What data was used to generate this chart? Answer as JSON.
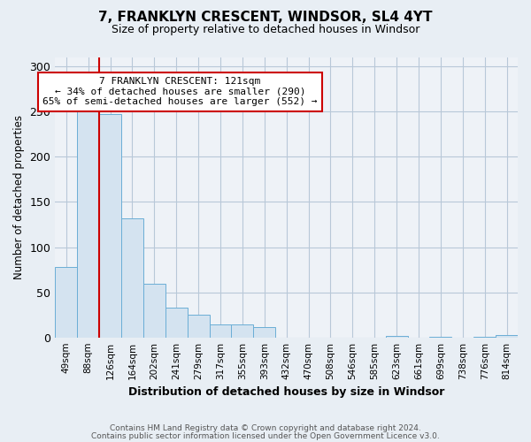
{
  "title": "7, FRANKLYN CRESCENT, WINDSOR, SL4 4YT",
  "subtitle": "Size of property relative to detached houses in Windsor",
  "xlabel": "Distribution of detached houses by size in Windsor",
  "ylabel": "Number of detached properties",
  "footnote1": "Contains HM Land Registry data © Crown copyright and database right 2024.",
  "footnote2": "Contains public sector information licensed under the Open Government Licence v3.0.",
  "categories": [
    "49sqm",
    "88sqm",
    "126sqm",
    "164sqm",
    "202sqm",
    "241sqm",
    "279sqm",
    "317sqm",
    "355sqm",
    "393sqm",
    "432sqm",
    "470sqm",
    "508sqm",
    "546sqm",
    "585sqm",
    "623sqm",
    "661sqm",
    "699sqm",
    "738sqm",
    "776sqm",
    "814sqm"
  ],
  "values": [
    78,
    250,
    247,
    132,
    59,
    33,
    25,
    14,
    14,
    11,
    0,
    0,
    0,
    0,
    0,
    2,
    0,
    1,
    0,
    1,
    3
  ],
  "bar_color": "#d4e3f0",
  "bar_edge_color": "#6baed6",
  "vline_color": "#cc0000",
  "vline_pos": 1.5,
  "annotation_text": "7 FRANKLYN CRESCENT: 121sqm\n← 34% of detached houses are smaller (290)\n65% of semi-detached houses are larger (552) →",
  "annotation_box_color": "white",
  "annotation_box_edge": "#cc0000",
  "ylim": [
    0,
    310
  ],
  "yticks": [
    0,
    50,
    100,
    150,
    200,
    250,
    300
  ],
  "bg_color": "#e8eef4",
  "plot_bg_color": "#eef2f7",
  "grid_color": "#b8c8d8"
}
